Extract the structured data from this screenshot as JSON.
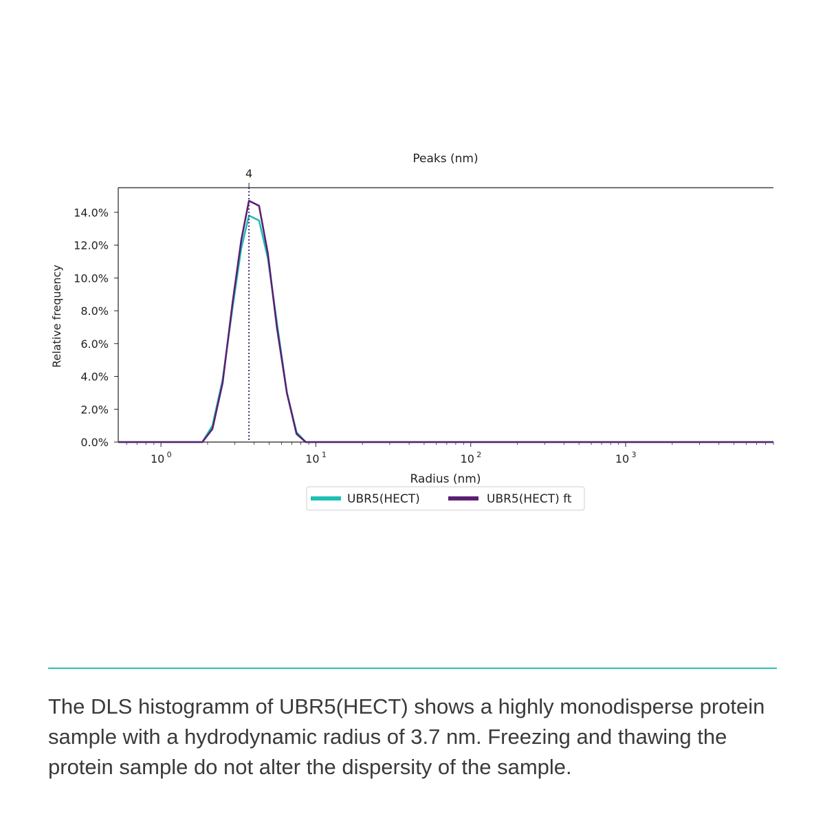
{
  "chart_data": {
    "type": "line",
    "title": "Peaks (nm)",
    "xlabel": "Radius (nm)",
    "ylabel": "Relative frequency",
    "x_scale": "log",
    "xlim": [
      0.53,
      9000
    ],
    "ylim": [
      0,
      15.5
    ],
    "grid": false,
    "legend_position": "bottom-center",
    "x_ticks": [
      {
        "base": "10",
        "exp": "0",
        "value": 1
      },
      {
        "base": "10",
        "exp": "1",
        "value": 10
      },
      {
        "base": "10",
        "exp": "2",
        "value": 100
      },
      {
        "base": "10",
        "exp": "3",
        "value": 1000
      }
    ],
    "y_ticks": [
      {
        "label": "0.0%",
        "value": 0
      },
      {
        "label": "2.0%",
        "value": 2
      },
      {
        "label": "4.0%",
        "value": 4
      },
      {
        "label": "6.0%",
        "value": 6
      },
      {
        "label": "8.0%",
        "value": 8
      },
      {
        "label": "10.0%",
        "value": 10
      },
      {
        "label": "12.0%",
        "value": 12
      },
      {
        "label": "14.0%",
        "value": 14
      }
    ],
    "peak": {
      "label": "4",
      "x": 3.7
    },
    "series": [
      {
        "name": "UBR5(HECT)",
        "color": "#1ebfb5",
        "x": [
          0.53,
          1.0,
          1.5,
          1.85,
          2.15,
          2.5,
          2.9,
          3.3,
          3.7,
          4.3,
          4.9,
          5.6,
          6.5,
          7.5,
          8.6,
          10,
          100,
          1000,
          9000
        ],
        "y": [
          0,
          0,
          0,
          0,
          1.0,
          3.8,
          8.2,
          11.8,
          13.8,
          13.5,
          11.2,
          7.3,
          3.0,
          0.6,
          0,
          0,
          0,
          0,
          0
        ]
      },
      {
        "name": "UBR5(HECT) ft",
        "color": "#5b1f73",
        "x": [
          0.53,
          1.0,
          1.5,
          1.85,
          2.15,
          2.5,
          2.9,
          3.3,
          3.7,
          4.3,
          4.9,
          5.6,
          6.5,
          7.5,
          8.6,
          10,
          100,
          1000,
          9000
        ],
        "y": [
          0,
          0,
          0,
          0,
          0.8,
          3.6,
          8.5,
          12.3,
          14.7,
          14.4,
          11.5,
          7.0,
          3.0,
          0.5,
          0,
          0,
          0,
          0,
          0
        ]
      }
    ]
  },
  "caption": "The DLS histogramm of UBR5(HECT) shows a highly monodisperse protein sample with a hydrodynamic radius of 3.7 nm. Freezing and thawing the protein sample do not alter the dispersity of the sample."
}
